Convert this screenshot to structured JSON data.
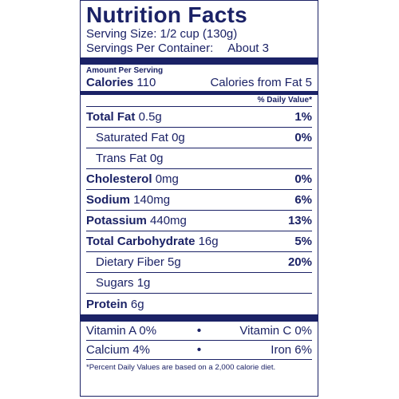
{
  "label": {
    "title": "Nutrition Facts",
    "serving_size": "Serving Size: 1/2 cup (130g)",
    "servings_per_container_label": "Servings Per Container:",
    "servings_per_container_value": "About 3",
    "amount_per_serving": "Amount Per Serving",
    "calories_label": "Calories",
    "calories_value": "110",
    "calories_from_fat_label": "Calories from Fat",
    "calories_from_fat_value": "5",
    "daily_value_header": "% Daily Value*",
    "nutrients": [
      {
        "name": "Total Fat",
        "amount": "0.5g",
        "dv": "1%"
      },
      {
        "name": "Saturated Fat",
        "amount": "0g",
        "dv": "0%"
      },
      {
        "name": "Trans Fat",
        "amount": "0g",
        "dv": ""
      },
      {
        "name": "Cholesterol",
        "amount": "0mg",
        "dv": "0%"
      },
      {
        "name": "Sodium",
        "amount": "140mg",
        "dv": "6%"
      },
      {
        "name": "Potassium",
        "amount": "440mg",
        "dv": "13%"
      },
      {
        "name": "Total Carbohydrate",
        "amount": "16g",
        "dv": "5%"
      },
      {
        "name": "Dietary Fiber",
        "amount": "5g",
        "dv": "20%"
      },
      {
        "name": "Sugars",
        "amount": "1g",
        "dv": ""
      },
      {
        "name": "Protein",
        "amount": "6g",
        "dv": ""
      }
    ],
    "vitamins": [
      {
        "left": "Vitamin A 0%",
        "right": "Vitamin C 0%"
      },
      {
        "left": "Calcium 4%",
        "right": "Iron 6%"
      }
    ],
    "bullet": "•",
    "footnote": "*Percent Daily Values are based on a 2,000 calorie diet."
  },
  "colors": {
    "ink": "#1b2266",
    "background": "#ffffff"
  }
}
